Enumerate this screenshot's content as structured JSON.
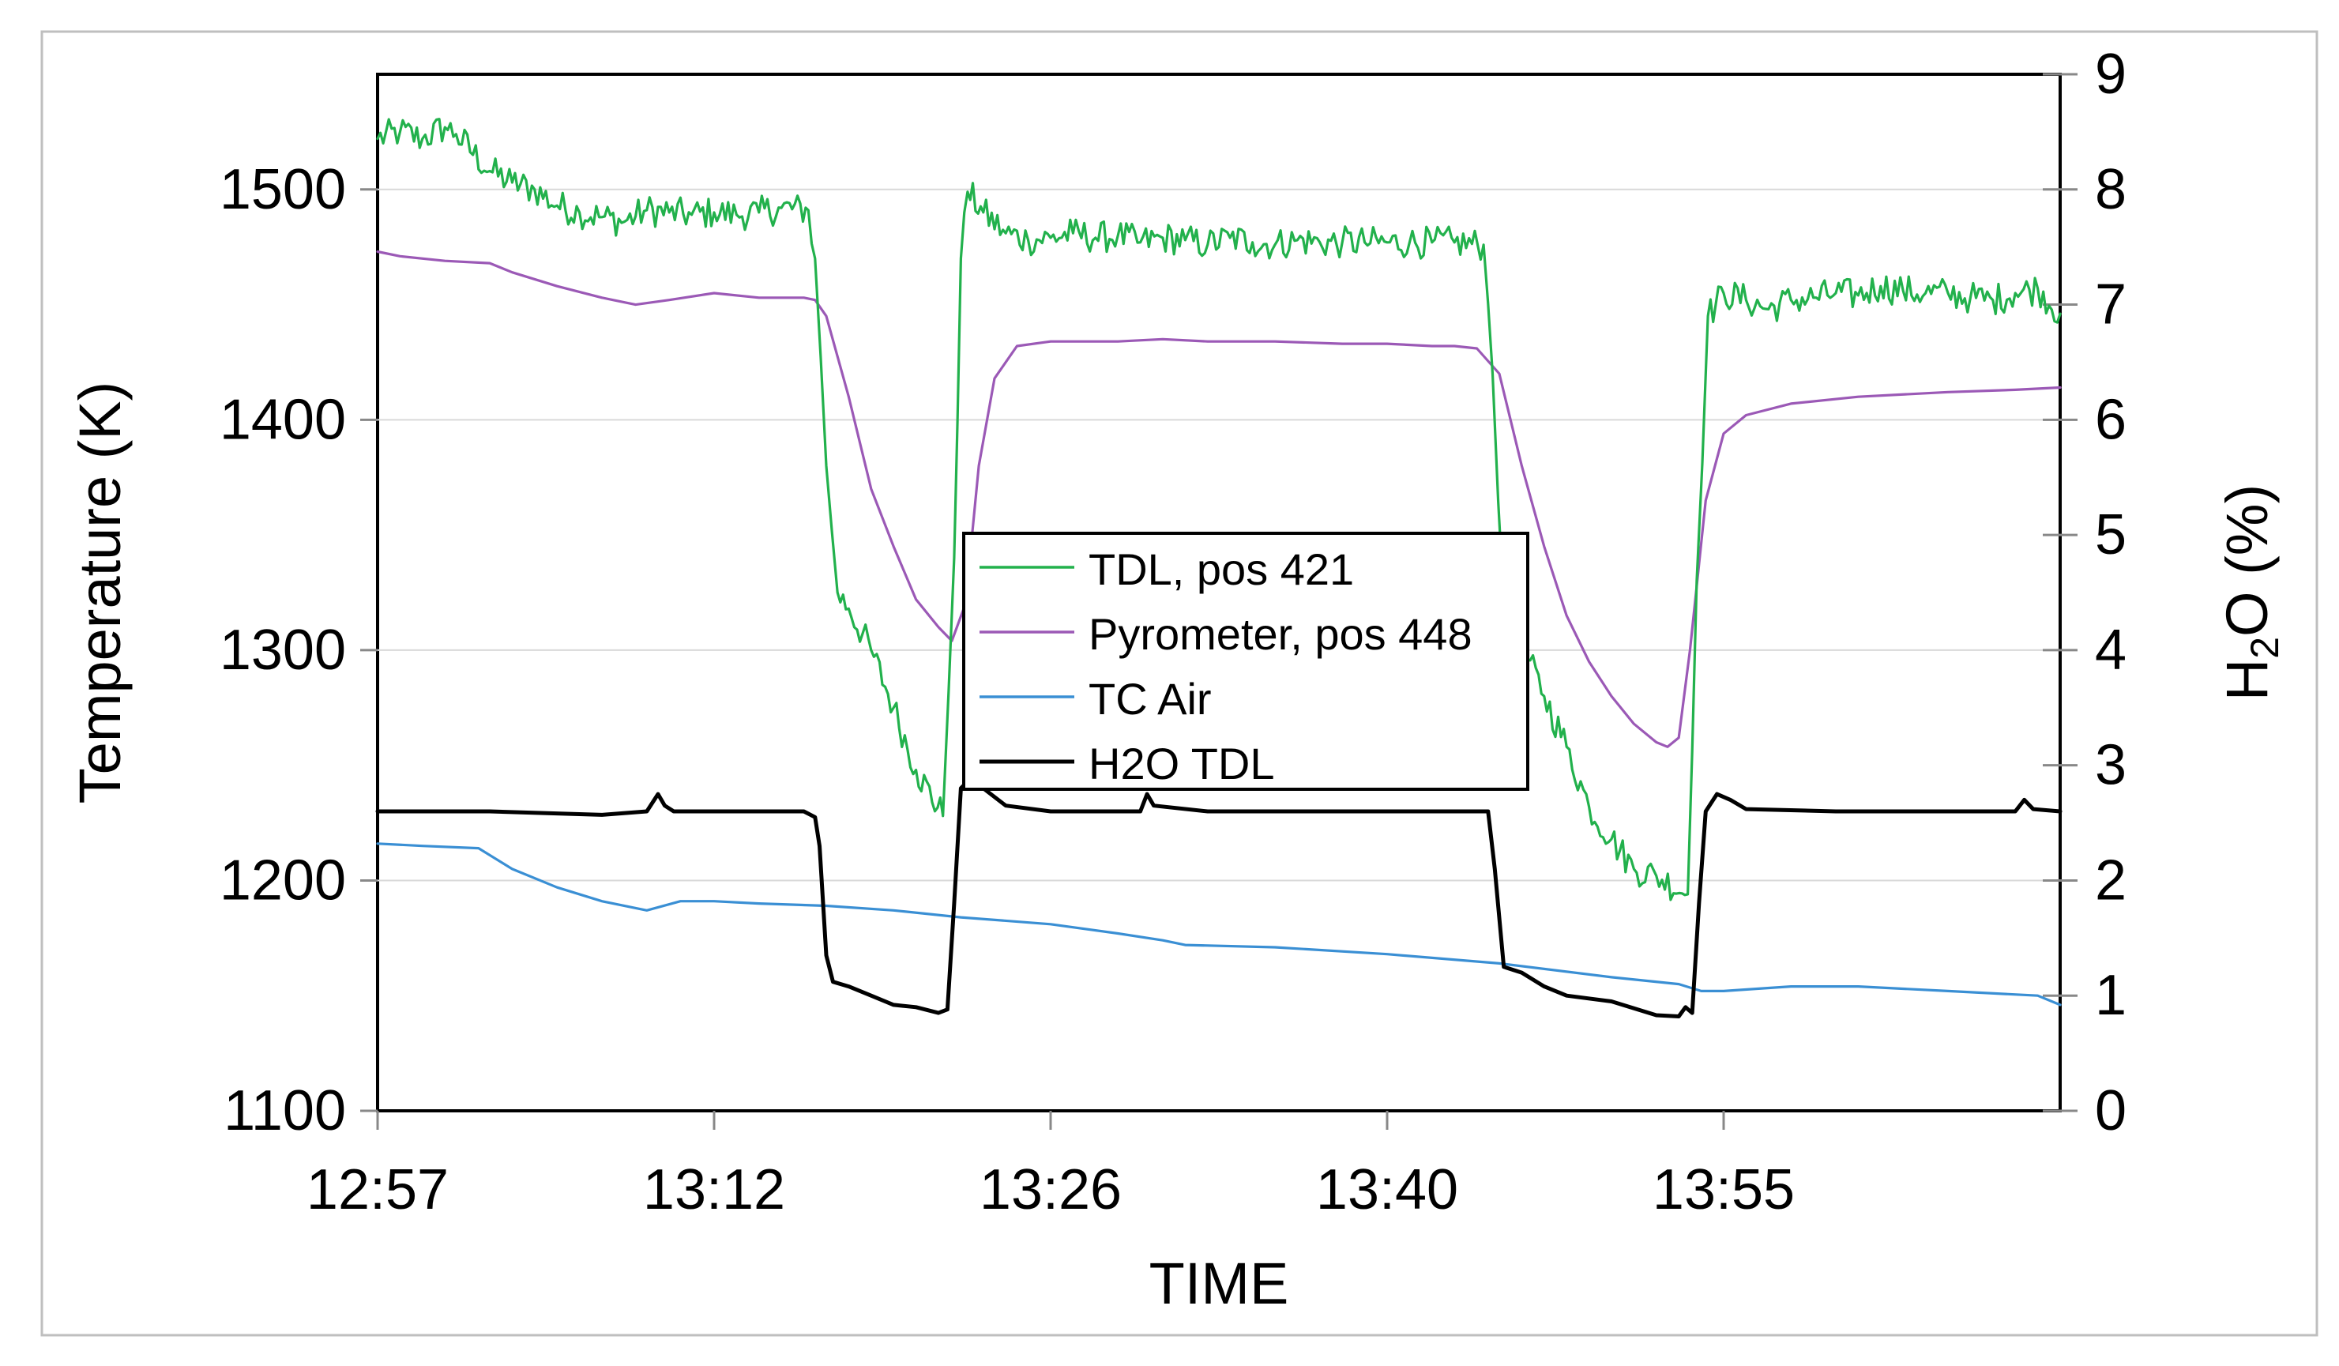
{
  "chart_data": {
    "type": "line",
    "title": "",
    "xlabel": "TIME",
    "ylabel": "Temperature (K)",
    "y2label_main": "H",
    "y2label_sub": "2",
    "y2label_rest": "O (%)",
    "x_range_minutes": [
      0,
      75
    ],
    "x_ticks": [
      {
        "label": "12:57",
        "t": 0
      },
      {
        "label": "13:12",
        "t": 15
      },
      {
        "label": "13:26",
        "t": 30
      },
      {
        "label": "13:40",
        "t": 45
      },
      {
        "label": "13:55",
        "t": 60
      }
    ],
    "ylim": [
      1100,
      1550
    ],
    "y_ticks": [
      "1100",
      "1200",
      "1300",
      "1400",
      "1500"
    ],
    "y2lim": [
      0,
      9
    ],
    "y2_ticks": [
      "0",
      "1",
      "2",
      "3",
      "4",
      "5",
      "6",
      "7",
      "8",
      "9"
    ],
    "legend_position": "center",
    "series": [
      {
        "name": "TDL, pos 421",
        "axis": "left",
        "color": "#22b14c",
        "noise": true,
        "points": [
          [
            0,
            1522
          ],
          [
            1,
            1525
          ],
          [
            2,
            1522
          ],
          [
            3,
            1527
          ],
          [
            3.5,
            1524
          ],
          [
            5,
            1508
          ],
          [
            6,
            1503
          ],
          [
            7,
            1500
          ],
          [
            8,
            1493
          ],
          [
            9,
            1490
          ],
          [
            10,
            1488
          ],
          [
            11,
            1486
          ],
          [
            12,
            1491
          ],
          [
            13,
            1490
          ],
          [
            14,
            1489
          ],
          [
            15,
            1490
          ],
          [
            16,
            1489
          ],
          [
            17,
            1490
          ],
          [
            18,
            1492
          ],
          [
            19.2,
            1491
          ],
          [
            19.5,
            1470
          ],
          [
            20,
            1380
          ],
          [
            20.5,
            1325
          ],
          [
            21,
            1318
          ],
          [
            22,
            1300
          ],
          [
            23,
            1275
          ],
          [
            24,
            1248
          ],
          [
            25.2,
            1228
          ],
          [
            25.7,
            1340
          ],
          [
            26,
            1470
          ],
          [
            26.3,
            1499
          ],
          [
            27,
            1490
          ],
          [
            28,
            1481
          ],
          [
            29,
            1478
          ],
          [
            30,
            1479
          ],
          [
            31,
            1481
          ],
          [
            32,
            1479
          ],
          [
            33,
            1480
          ],
          [
            34,
            1477
          ],
          [
            35,
            1479
          ],
          [
            36,
            1478
          ],
          [
            37,
            1476
          ],
          [
            38,
            1479
          ],
          [
            39,
            1477
          ],
          [
            40,
            1476
          ],
          [
            41,
            1478
          ],
          [
            42,
            1477
          ],
          [
            43,
            1477
          ],
          [
            44,
            1477
          ],
          [
            45,
            1477
          ],
          [
            46,
            1477
          ],
          [
            47,
            1477
          ],
          [
            48,
            1477
          ],
          [
            49.3,
            1476
          ],
          [
            49.7,
            1420
          ],
          [
            50.2,
            1320
          ],
          [
            51,
            1302
          ],
          [
            52,
            1280
          ],
          [
            53,
            1258
          ],
          [
            54,
            1232
          ],
          [
            55,
            1218
          ],
          [
            56,
            1205
          ],
          [
            57,
            1202
          ],
          [
            58.4,
            1194
          ],
          [
            58.8,
            1330
          ],
          [
            59.3,
            1445
          ],
          [
            60,
            1455
          ],
          [
            61,
            1452
          ],
          [
            62,
            1448
          ],
          [
            63,
            1452
          ],
          [
            64,
            1453
          ],
          [
            65,
            1455
          ],
          [
            66,
            1454
          ],
          [
            67,
            1458
          ],
          [
            68,
            1456
          ],
          [
            69,
            1455
          ],
          [
            70,
            1455
          ],
          [
            71,
            1453
          ],
          [
            72,
            1452
          ],
          [
            73,
            1455
          ],
          [
            74,
            1457
          ],
          [
            75,
            1446
          ]
        ]
      },
      {
        "name": "Pyrometer, pos 448",
        "axis": "left",
        "color": "#9b59b6",
        "noise": false,
        "points": [
          [
            0,
            1473
          ],
          [
            1,
            1471
          ],
          [
            3,
            1469
          ],
          [
            5,
            1468
          ],
          [
            6,
            1464
          ],
          [
            8,
            1458
          ],
          [
            10,
            1453
          ],
          [
            11.5,
            1450
          ],
          [
            13,
            1452
          ],
          [
            15,
            1455
          ],
          [
            17,
            1453
          ],
          [
            19,
            1453
          ],
          [
            19.5,
            1452
          ],
          [
            20,
            1445
          ],
          [
            21,
            1410
          ],
          [
            22,
            1370
          ],
          [
            23,
            1345
          ],
          [
            24,
            1322
          ],
          [
            25,
            1310
          ],
          [
            25.6,
            1304
          ],
          [
            26.2,
            1320
          ],
          [
            26.8,
            1380
          ],
          [
            27.5,
            1418
          ],
          [
            28.5,
            1432
          ],
          [
            30,
            1434
          ],
          [
            33,
            1434
          ],
          [
            35,
            1435
          ],
          [
            37,
            1434
          ],
          [
            40,
            1434
          ],
          [
            43,
            1433
          ],
          [
            45,
            1433
          ],
          [
            47,
            1432
          ],
          [
            48,
            1432
          ],
          [
            49,
            1431
          ],
          [
            50,
            1420
          ],
          [
            51,
            1380
          ],
          [
            52,
            1345
          ],
          [
            53,
            1315
          ],
          [
            54,
            1295
          ],
          [
            55,
            1280
          ],
          [
            56,
            1268
          ],
          [
            57,
            1260
          ],
          [
            57.5,
            1258
          ],
          [
            58,
            1262
          ],
          [
            58.5,
            1300
          ],
          [
            59.2,
            1365
          ],
          [
            60,
            1394
          ],
          [
            61,
            1402
          ],
          [
            63,
            1407
          ],
          [
            66,
            1410
          ],
          [
            70,
            1412
          ],
          [
            73,
            1413
          ],
          [
            75,
            1414
          ]
        ]
      },
      {
        "name": "TC Air",
        "axis": "left",
        "color": "#3a8fd4",
        "noise": false,
        "points": [
          [
            0,
            1216
          ],
          [
            2,
            1215
          ],
          [
            4.5,
            1214
          ],
          [
            6,
            1205
          ],
          [
            8,
            1197
          ],
          [
            10,
            1191
          ],
          [
            12,
            1187
          ],
          [
            13.5,
            1191
          ],
          [
            15,
            1191
          ],
          [
            17,
            1190
          ],
          [
            20,
            1189
          ],
          [
            23,
            1187
          ],
          [
            26,
            1184
          ],
          [
            30,
            1181
          ],
          [
            33,
            1177
          ],
          [
            35,
            1174
          ],
          [
            36,
            1172
          ],
          [
            40,
            1171
          ],
          [
            45,
            1168
          ],
          [
            50,
            1164
          ],
          [
            55,
            1158
          ],
          [
            58,
            1155
          ],
          [
            59,
            1152
          ],
          [
            60,
            1152
          ],
          [
            63,
            1154
          ],
          [
            66,
            1154
          ],
          [
            70,
            1152
          ],
          [
            74,
            1150
          ],
          [
            75,
            1146
          ]
        ]
      },
      {
        "name": "H2O TDL",
        "axis": "right",
        "color": "#000000",
        "noise": false,
        "points": [
          [
            0,
            2.6
          ],
          [
            5,
            2.6
          ],
          [
            10,
            2.57
          ],
          [
            12,
            2.6
          ],
          [
            12.5,
            2.75
          ],
          [
            12.8,
            2.65
          ],
          [
            13.2,
            2.6
          ],
          [
            15,
            2.6
          ],
          [
            19,
            2.6
          ],
          [
            19.5,
            2.55
          ],
          [
            19.7,
            2.3
          ],
          [
            20.0,
            1.35
          ],
          [
            20.3,
            1.12
          ],
          [
            21,
            1.08
          ],
          [
            22,
            1.0
          ],
          [
            23,
            0.92
          ],
          [
            24,
            0.9
          ],
          [
            25,
            0.85
          ],
          [
            25.4,
            0.88
          ],
          [
            25.7,
            1.8
          ],
          [
            26,
            2.8
          ],
          [
            26.5,
            2.9
          ],
          [
            27,
            2.8
          ],
          [
            28,
            2.65
          ],
          [
            30,
            2.6
          ],
          [
            34,
            2.6
          ],
          [
            34.3,
            2.75
          ],
          [
            34.6,
            2.65
          ],
          [
            37,
            2.6
          ],
          [
            45,
            2.6
          ],
          [
            49.5,
            2.6
          ],
          [
            49.8,
            2.1
          ],
          [
            50.2,
            1.25
          ],
          [
            51,
            1.2
          ],
          [
            52,
            1.08
          ],
          [
            53,
            1.0
          ],
          [
            55,
            0.95
          ],
          [
            57,
            0.83
          ],
          [
            58,
            0.82
          ],
          [
            58.3,
            0.9
          ],
          [
            58.6,
            0.85
          ],
          [
            58.9,
            1.8
          ],
          [
            59.2,
            2.6
          ],
          [
            59.7,
            2.75
          ],
          [
            60.3,
            2.7
          ],
          [
            61,
            2.62
          ],
          [
            65,
            2.6
          ],
          [
            70,
            2.6
          ],
          [
            73,
            2.6
          ],
          [
            73.4,
            2.7
          ],
          [
            73.8,
            2.62
          ],
          [
            75,
            2.6
          ]
        ]
      }
    ]
  }
}
